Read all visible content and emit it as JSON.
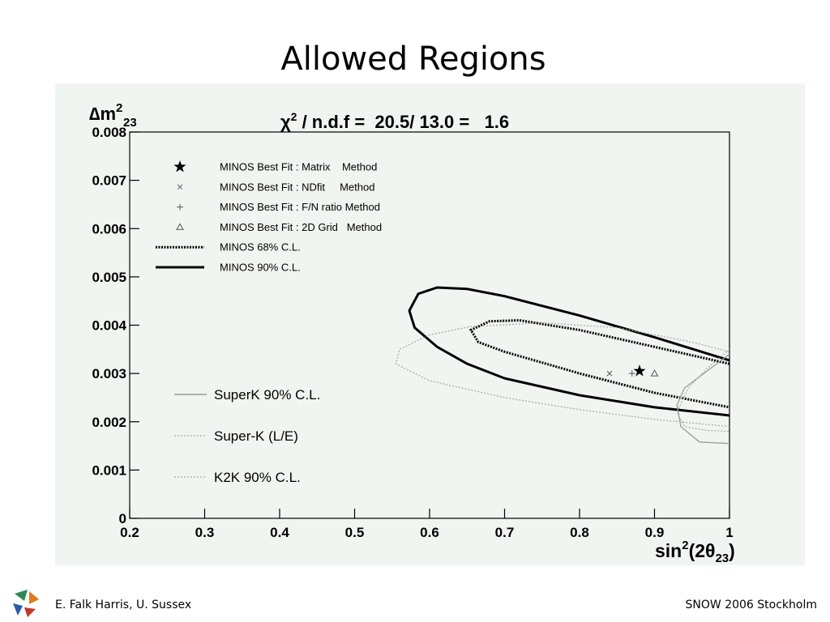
{
  "slide_title": "Allowed Regions",
  "chart_data": {
    "type": "contour",
    "annotation": {
      "main": "χ",
      "sup": "2",
      "rest": " / n.d.f =  20.5/ 13.0 =   1.6"
    },
    "ylabel": {
      "main": "∆m",
      "sup": "2",
      "sub": "23"
    },
    "xlabel": {
      "main": "sin",
      "sup": "2",
      "mid": "(2θ",
      "sub": "23",
      "end": ")"
    },
    "xlim": [
      0.2,
      1
    ],
    "ylim": [
      0,
      0.008
    ],
    "xticks": [
      0.2,
      0.3,
      0.4,
      0.5,
      0.6,
      0.7,
      0.8,
      0.9,
      1
    ],
    "yticks": [
      0,
      0.001,
      0.002,
      0.003,
      0.004,
      0.005,
      0.006,
      0.007,
      0.008
    ],
    "series": [
      {
        "name": "MINOS Best Fit : Matrix    Method",
        "color": "#000000",
        "marker": "star",
        "x": [
          0.88
        ],
        "y": [
          0.00305
        ]
      },
      {
        "name": "MINOS Best Fit : NDfit     Method",
        "color": "#555555",
        "marker": "cross",
        "x": [
          0.84
        ],
        "y": [
          0.003
        ]
      },
      {
        "name": "MINOS Best Fit : F/N ratio Method",
        "color": "#555555",
        "marker": "plus",
        "x": [
          0.87
        ],
        "y": [
          0.003
        ]
      },
      {
        "name": "MINOS Best Fit : 2D Grid   Method",
        "color": "#555555",
        "marker": "triangle",
        "x": [
          0.9
        ],
        "y": [
          0.003
        ]
      },
      {
        "name": "MINOS 68% C.L.",
        "color": "#000000",
        "line": "dotted",
        "x": [
          1.0,
          0.9,
          0.8,
          0.72,
          0.68,
          0.655,
          0.665,
          0.7,
          0.8,
          0.9,
          1.0
        ],
        "y": [
          0.0032,
          0.00355,
          0.0039,
          0.0041,
          0.00408,
          0.0039,
          0.00365,
          0.00345,
          0.003,
          0.0026,
          0.0023
        ]
      },
      {
        "name": "MINOS 90% C.L.",
        "color": "#000000",
        "line": "solid",
        "x": [
          1.0,
          0.9,
          0.8,
          0.7,
          0.65,
          0.61,
          0.585,
          0.573,
          0.58,
          0.61,
          0.65,
          0.7,
          0.8,
          0.9,
          1.0
        ],
        "y": [
          0.00327,
          0.00375,
          0.0042,
          0.0046,
          0.00475,
          0.00478,
          0.00465,
          0.0043,
          0.00395,
          0.00355,
          0.0032,
          0.0029,
          0.00255,
          0.0023,
          0.00213
        ]
      },
      {
        "name": "SuperK 90% C.L.",
        "color": "#999999",
        "line": "solid",
        "x": [
          1.0,
          0.97,
          0.94,
          0.93,
          0.935,
          0.96,
          1.0
        ],
        "y": [
          0.0034,
          0.00305,
          0.0027,
          0.00235,
          0.0019,
          0.00158,
          0.00155
        ]
      },
      {
        "name": "Super-K (L/E)",
        "color": "#aaaaaa",
        "line": "dotted",
        "x": [
          1.0,
          0.97,
          0.945,
          0.93,
          0.94,
          0.97,
          1.0
        ],
        "y": [
          0.0035,
          0.0031,
          0.0027,
          0.0022,
          0.0019,
          0.00182,
          0.0018
        ]
      },
      {
        "name": "K2K 90% C.L.",
        "color": "#aaaaaa",
        "line": "dotted",
        "x": [
          1.0,
          0.9,
          0.8,
          0.7,
          0.6,
          0.555,
          0.56,
          0.6,
          0.654,
          0.75,
          0.85,
          0.95,
          1.0
        ],
        "y": [
          0.0019,
          0.00205,
          0.00225,
          0.0025,
          0.00285,
          0.0032,
          0.0035,
          0.0038,
          0.00397,
          0.00405,
          0.00395,
          0.00365,
          0.00345
        ]
      }
    ]
  },
  "footer": {
    "left": "E. Falk Harris, U. Sussex",
    "right": "SNOW 2006 Stockholm"
  }
}
